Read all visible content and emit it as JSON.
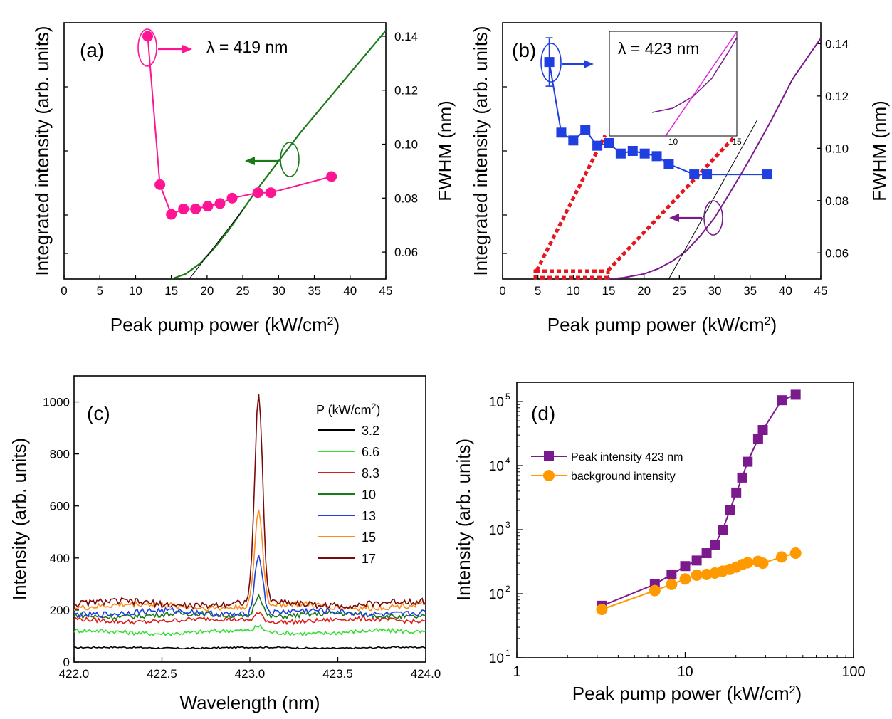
{
  "chart_data": [
    {
      "panel": "(a)",
      "type": "line",
      "annotation": "λ = 419 nm",
      "xlabel": "Peak pump power (kW/cm²)",
      "ylabel_left": "Integrated intensity (arb. units)",
      "ylabel_right": "FWHM (nm)",
      "xlim": [
        0,
        45
      ],
      "xticks": [
        "0",
        "5",
        "10",
        "15",
        "20",
        "25",
        "30",
        "35",
        "40",
        "45"
      ],
      "y_right_lim": [
        0.05,
        0.145
      ],
      "y_right_ticks": [
        "0.06",
        "0.08",
        "0.10",
        "0.12",
        "0.14"
      ],
      "colors": {
        "fwhm": "#ff1493",
        "intensity": "#1a7a1a",
        "fit": "#000000"
      },
      "series": [
        {
          "axis": "right",
          "marker": "circle",
          "x": [
            11.7,
            13.4,
            15.0,
            16.7,
            18.4,
            20.1,
            21.8,
            23.5,
            27.1,
            28.9,
            37.4
          ],
          "y": [
            0.14,
            0.085,
            0.074,
            0.076,
            0.076,
            0.077,
            0.078,
            0.08,
            0.082,
            0.082,
            0.088
          ]
        },
        {
          "axis": "left",
          "marker": "none",
          "x": [
            15,
            17,
            19,
            21,
            23,
            25,
            27,
            30,
            33,
            36,
            39,
            42,
            45
          ],
          "y": [
            0,
            0.02,
            0.06,
            0.12,
            0.19,
            0.27,
            0.35,
            0.46,
            0.57,
            0.67,
            0.77,
            0.87,
            0.97
          ]
        },
        {
          "axis": "left",
          "marker": "none",
          "style": "fit",
          "x": [
            17.5,
            25
          ],
          "y": [
            0,
            0.27
          ]
        }
      ]
    },
    {
      "panel": "(b)",
      "type": "line",
      "annotation": "λ = 423 nm",
      "xlabel": "Peak pump power (kW/cm²)",
      "ylabel_left": "Integrated intensity (arb. units)",
      "ylabel_right": "FWHM (nm)",
      "xlim": [
        0,
        45
      ],
      "xticks": [
        "0",
        "5",
        "10",
        "15",
        "20",
        "25",
        "30",
        "35",
        "40",
        "45"
      ],
      "y_right_lim": [
        0.05,
        0.148
      ],
      "y_right_ticks": [
        "0.06",
        "0.08",
        "0.10",
        "0.12",
        "0.14"
      ],
      "colors": {
        "fwhm": "#1f3fe0",
        "intensity": "#7b1a8c",
        "fit": "#000000",
        "zoom": "#e8141e",
        "inset": "#e020e0"
      },
      "series": [
        {
          "axis": "right",
          "marker": "square",
          "x": [
            6.6,
            8.3,
            10.0,
            11.7,
            13.4,
            15.0,
            16.7,
            18.4,
            20.1,
            21.8,
            23.5,
            27.1,
            28.9,
            37.4
          ],
          "y": [
            0.133,
            0.106,
            0.103,
            0.107,
            0.101,
            0.102,
            0.098,
            0.099,
            0.098,
            0.097,
            0.094,
            0.09,
            0.09,
            0.09
          ]
        },
        {
          "axis": "left",
          "marker": "none",
          "x": [
            15,
            17,
            20,
            22,
            24,
            26,
            28,
            30,
            32,
            35,
            38,
            41,
            45
          ],
          "y": [
            0,
            0.005,
            0.02,
            0.04,
            0.07,
            0.11,
            0.17,
            0.24,
            0.33,
            0.47,
            0.62,
            0.78,
            0.94
          ]
        },
        {
          "axis": "left",
          "marker": "none",
          "style": "fit",
          "x": [
            23.5,
            36
          ],
          "y": [
            0,
            0.62
          ]
        }
      ],
      "inset": {
        "xlim": [
          5,
          15
        ],
        "xticks": [
          "5",
          "10",
          "15"
        ]
      }
    },
    {
      "panel": "(c)",
      "type": "line",
      "xlabel": "Wavelength (nm)",
      "ylabel": "Intensity (arb. units)",
      "xlim": [
        422.0,
        424.0
      ],
      "ylim": [
        0,
        1100
      ],
      "xticks": [
        "422.0",
        "422.5",
        "423.0",
        "423.5",
        "424.0"
      ],
      "yticks": [
        "0",
        "200",
        "400",
        "600",
        "800",
        "1000"
      ],
      "legend_title": "P (kW/cm²)",
      "series": [
        {
          "name": "3.2",
          "color": "#000000",
          "base": 55,
          "peak": 0,
          "amp": 4
        },
        {
          "name": "6.6",
          "color": "#33dd33",
          "base": 115,
          "peak": 20,
          "amp": 12
        },
        {
          "name": "8.3",
          "color": "#e01a1a",
          "base": 160,
          "peak": 30,
          "amp": 12
        },
        {
          "name": "10",
          "color": "#1a7a1a",
          "base": 180,
          "peak": 85,
          "amp": 14
        },
        {
          "name": "13",
          "color": "#1f3fe0",
          "base": 190,
          "peak": 225,
          "amp": 16
        },
        {
          "name": "15",
          "color": "#ff8c1a",
          "base": 215,
          "peak": 365,
          "amp": 16
        },
        {
          "name": "17",
          "color": "#7a0a0a",
          "base": 225,
          "peak": 790,
          "amp": 18
        }
      ]
    },
    {
      "panel": "(d)",
      "type": "scatter",
      "xlabel": "Peak pump power (kW/cm²)",
      "ylabel": "Intensity (arb. units)",
      "xscale": "log",
      "yscale": "log",
      "xlim": [
        1,
        100
      ],
      "ylim": [
        10,
        200000
      ],
      "xticks": [
        "1",
        "10",
        "100"
      ],
      "yticks": [
        "10",
        "10",
        "10",
        "10",
        "10"
      ],
      "ytick_exponents": [
        "1",
        "2",
        "3",
        "4",
        "5"
      ],
      "legend": "top-left",
      "series": [
        {
          "name": "Peak intensity 423 nm",
          "color": "#7b1a8c",
          "marker": "square",
          "x": [
            3.2,
            6.6,
            8.3,
            10.0,
            11.7,
            13.4,
            15.0,
            16.7,
            18.4,
            20.1,
            21.8,
            23.5,
            27.1,
            28.9,
            37.4,
            45.3
          ],
          "y": [
            65,
            140,
            200,
            270,
            330,
            430,
            580,
            1000,
            2000,
            3800,
            6500,
            11500,
            26000,
            36000,
            105000,
            128000
          ]
        },
        {
          "name": "background intensity",
          "color": "#ff9900",
          "marker": "circle",
          "x": [
            3.2,
            6.6,
            8.3,
            10.0,
            11.7,
            13.4,
            15.0,
            16.7,
            18.4,
            20.1,
            21.8,
            23.5,
            27.1,
            28.9,
            37.4,
            45.3
          ],
          "y": [
            57,
            112,
            140,
            170,
            195,
            200,
            210,
            225,
            240,
            260,
            285,
            305,
            320,
            300,
            375,
            430
          ]
        }
      ]
    }
  ]
}
